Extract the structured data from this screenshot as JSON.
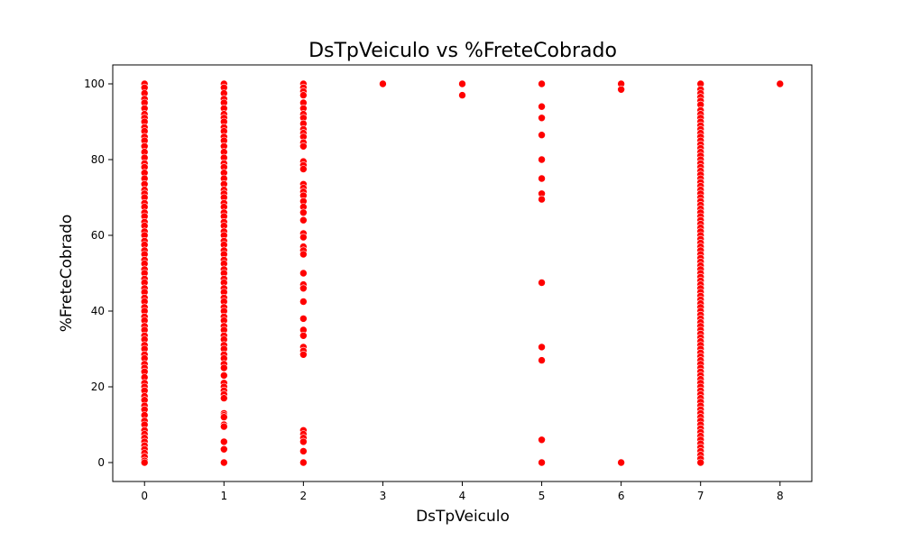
{
  "chart_data": {
    "type": "scatter",
    "title": "DsTpVeiculo vs %FreteCobrado",
    "xlabel": "DsTpVeiculo",
    "ylabel": "%FreteCobrado",
    "xlim": [
      -0.4,
      8.4
    ],
    "ylim": [
      -5,
      105
    ],
    "xticks": [
      0,
      1,
      2,
      3,
      4,
      5,
      6,
      7,
      8
    ],
    "yticks": [
      0,
      20,
      40,
      60,
      80,
      100
    ],
    "grid": false,
    "marker_color": "#ff0000",
    "series": [
      {
        "points": [
          [
            0,
            100
          ],
          [
            0,
            99
          ],
          [
            0,
            97.5
          ],
          [
            0,
            96
          ],
          [
            0,
            95
          ],
          [
            0,
            93.5
          ],
          [
            0,
            92
          ],
          [
            0,
            91
          ],
          [
            0,
            90
          ],
          [
            0,
            88.5
          ],
          [
            0,
            87.5
          ],
          [
            0,
            86
          ],
          [
            0,
            85
          ],
          [
            0,
            83.5
          ],
          [
            0,
            82
          ],
          [
            0,
            80.5
          ],
          [
            0,
            79
          ],
          [
            0,
            78
          ],
          [
            0,
            76.5
          ],
          [
            0,
            75
          ],
          [
            0,
            73.5
          ],
          [
            0,
            72
          ],
          [
            0,
            71
          ],
          [
            0,
            70
          ],
          [
            0,
            68.5
          ],
          [
            0,
            67.5
          ],
          [
            0,
            66
          ],
          [
            0,
            65
          ],
          [
            0,
            63.5
          ],
          [
            0,
            62.5
          ],
          [
            0,
            61
          ],
          [
            0,
            60
          ],
          [
            0,
            58.5
          ],
          [
            0,
            57.5
          ],
          [
            0,
            56
          ],
          [
            0,
            55
          ],
          [
            0,
            53.5
          ],
          [
            0,
            52.5
          ],
          [
            0,
            51
          ],
          [
            0,
            50
          ],
          [
            0,
            48.5
          ],
          [
            0,
            47.5
          ],
          [
            0,
            46
          ],
          [
            0,
            45
          ],
          [
            0,
            43.5
          ],
          [
            0,
            42.5
          ],
          [
            0,
            41
          ],
          [
            0,
            40
          ],
          [
            0,
            38.5
          ],
          [
            0,
            37.5
          ],
          [
            0,
            36
          ],
          [
            0,
            35
          ],
          [
            0,
            33.5
          ],
          [
            0,
            32.5
          ],
          [
            0,
            31
          ],
          [
            0,
            30
          ],
          [
            0,
            28.5
          ],
          [
            0,
            27.5
          ],
          [
            0,
            26
          ],
          [
            0,
            25
          ],
          [
            0,
            24
          ],
          [
            0,
            22.5
          ],
          [
            0,
            21
          ],
          [
            0,
            20
          ],
          [
            0,
            19
          ],
          [
            0,
            17.5
          ],
          [
            0,
            16.5
          ],
          [
            0,
            15
          ],
          [
            0,
            14
          ],
          [
            0,
            12.5
          ],
          [
            0,
            11
          ],
          [
            0,
            10
          ],
          [
            0,
            8.5
          ],
          [
            0,
            7.5
          ],
          [
            0,
            6.5
          ],
          [
            0,
            5.5
          ],
          [
            0,
            4.5
          ],
          [
            0,
            3.5
          ],
          [
            0,
            2.5
          ],
          [
            0,
            1.5
          ],
          [
            0,
            0.5
          ],
          [
            0,
            0
          ],
          [
            1,
            100
          ],
          [
            1,
            99
          ],
          [
            1,
            97.5
          ],
          [
            1,
            96
          ],
          [
            1,
            95
          ],
          [
            1,
            93.5
          ],
          [
            1,
            92
          ],
          [
            1,
            91
          ],
          [
            1,
            90
          ],
          [
            1,
            88.5
          ],
          [
            1,
            87.5
          ],
          [
            1,
            86
          ],
          [
            1,
            85
          ],
          [
            1,
            83.5
          ],
          [
            1,
            82
          ],
          [
            1,
            80.5
          ],
          [
            1,
            79
          ],
          [
            1,
            78
          ],
          [
            1,
            76.5
          ],
          [
            1,
            75
          ],
          [
            1,
            73.5
          ],
          [
            1,
            72
          ],
          [
            1,
            71
          ],
          [
            1,
            70
          ],
          [
            1,
            68.5
          ],
          [
            1,
            67.5
          ],
          [
            1,
            66
          ],
          [
            1,
            65
          ],
          [
            1,
            63.5
          ],
          [
            1,
            62.5
          ],
          [
            1,
            61
          ],
          [
            1,
            60
          ],
          [
            1,
            58.5
          ],
          [
            1,
            57.5
          ],
          [
            1,
            56
          ],
          [
            1,
            55
          ],
          [
            1,
            53.5
          ],
          [
            1,
            52.5
          ],
          [
            1,
            51
          ],
          [
            1,
            50
          ],
          [
            1,
            48.5
          ],
          [
            1,
            47.5
          ],
          [
            1,
            46
          ],
          [
            1,
            45
          ],
          [
            1,
            43.5
          ],
          [
            1,
            42.5
          ],
          [
            1,
            41
          ],
          [
            1,
            40
          ],
          [
            1,
            38.5
          ],
          [
            1,
            37.5
          ],
          [
            1,
            36
          ],
          [
            1,
            35
          ],
          [
            1,
            33.5
          ],
          [
            1,
            32.5
          ],
          [
            1,
            31
          ],
          [
            1,
            30
          ],
          [
            1,
            28.5
          ],
          [
            1,
            27.5
          ],
          [
            1,
            26
          ],
          [
            1,
            25
          ],
          [
            1,
            23
          ],
          [
            1,
            21
          ],
          [
            1,
            20
          ],
          [
            1,
            19
          ],
          [
            1,
            18
          ],
          [
            1,
            17
          ],
          [
            1,
            13
          ],
          [
            1,
            12.5
          ],
          [
            1,
            12
          ],
          [
            1,
            10
          ],
          [
            1,
            9.5
          ],
          [
            1,
            5.5
          ],
          [
            1,
            3.5
          ],
          [
            1,
            0
          ],
          [
            2,
            100
          ],
          [
            2,
            99
          ],
          [
            2,
            98
          ],
          [
            2,
            97
          ],
          [
            2,
            95
          ],
          [
            2,
            93.5
          ],
          [
            2,
            92
          ],
          [
            2,
            91
          ],
          [
            2,
            89.5
          ],
          [
            2,
            88
          ],
          [
            2,
            87
          ],
          [
            2,
            86
          ],
          [
            2,
            84.5
          ],
          [
            2,
            83.5
          ],
          [
            2,
            79.5
          ],
          [
            2,
            78.5
          ],
          [
            2,
            77.5
          ],
          [
            2,
            73.5
          ],
          [
            2,
            72.5
          ],
          [
            2,
            71.5
          ],
          [
            2,
            70.5
          ],
          [
            2,
            69
          ],
          [
            2,
            67.5
          ],
          [
            2,
            66
          ],
          [
            2,
            64
          ],
          [
            2,
            60.5
          ],
          [
            2,
            59.5
          ],
          [
            2,
            57
          ],
          [
            2,
            56
          ],
          [
            2,
            55
          ],
          [
            2,
            50
          ],
          [
            2,
            47
          ],
          [
            2,
            46
          ],
          [
            2,
            42.5
          ],
          [
            2,
            38
          ],
          [
            2,
            35
          ],
          [
            2,
            33.5
          ],
          [
            2,
            30.5
          ],
          [
            2,
            29.5
          ],
          [
            2,
            28.5
          ],
          [
            2,
            8.5
          ],
          [
            2,
            7.5
          ],
          [
            2,
            6.5
          ],
          [
            2,
            5.5
          ],
          [
            2,
            3
          ],
          [
            2,
            0
          ],
          [
            3,
            100
          ],
          [
            4,
            100
          ],
          [
            4,
            97
          ],
          [
            5,
            100
          ],
          [
            5,
            94
          ],
          [
            5,
            91
          ],
          [
            5,
            86.5
          ],
          [
            5,
            80
          ],
          [
            5,
            75
          ],
          [
            5,
            71
          ],
          [
            5,
            69.5
          ],
          [
            5,
            47.5
          ],
          [
            5,
            30.5
          ],
          [
            5,
            27
          ],
          [
            5,
            6
          ],
          [
            5,
            0
          ],
          [
            6,
            100
          ],
          [
            6,
            98.5
          ],
          [
            6,
            0
          ],
          [
            7,
            100
          ],
          [
            7,
            98.5
          ],
          [
            7,
            97.5
          ],
          [
            7,
            96.5
          ],
          [
            7,
            95.5
          ],
          [
            7,
            94.5
          ],
          [
            7,
            93
          ],
          [
            7,
            92
          ],
          [
            7,
            91
          ],
          [
            7,
            90
          ],
          [
            7,
            89
          ],
          [
            7,
            88
          ],
          [
            7,
            87
          ],
          [
            7,
            86
          ],
          [
            7,
            85
          ],
          [
            7,
            84
          ],
          [
            7,
            83
          ],
          [
            7,
            82
          ],
          [
            7,
            81
          ],
          [
            7,
            80
          ],
          [
            7,
            79
          ],
          [
            7,
            78
          ],
          [
            7,
            77
          ],
          [
            7,
            76
          ],
          [
            7,
            75
          ],
          [
            7,
            74
          ],
          [
            7,
            73
          ],
          [
            7,
            72
          ],
          [
            7,
            71
          ],
          [
            7,
            70
          ],
          [
            7,
            69
          ],
          [
            7,
            68
          ],
          [
            7,
            67
          ],
          [
            7,
            66
          ],
          [
            7,
            65
          ],
          [
            7,
            64
          ],
          [
            7,
            63
          ],
          [
            7,
            62
          ],
          [
            7,
            61
          ],
          [
            7,
            60
          ],
          [
            7,
            59
          ],
          [
            7,
            58
          ],
          [
            7,
            57
          ],
          [
            7,
            56
          ],
          [
            7,
            55
          ],
          [
            7,
            54
          ],
          [
            7,
            53
          ],
          [
            7,
            52
          ],
          [
            7,
            51
          ],
          [
            7,
            50
          ],
          [
            7,
            49
          ],
          [
            7,
            48
          ],
          [
            7,
            47
          ],
          [
            7,
            46
          ],
          [
            7,
            45
          ],
          [
            7,
            44
          ],
          [
            7,
            43
          ],
          [
            7,
            42
          ],
          [
            7,
            41
          ],
          [
            7,
            40
          ],
          [
            7,
            39
          ],
          [
            7,
            38
          ],
          [
            7,
            37
          ],
          [
            7,
            36
          ],
          [
            7,
            35
          ],
          [
            7,
            34
          ],
          [
            7,
            33
          ],
          [
            7,
            32
          ],
          [
            7,
            31
          ],
          [
            7,
            30
          ],
          [
            7,
            29
          ],
          [
            7,
            28
          ],
          [
            7,
            27
          ],
          [
            7,
            26
          ],
          [
            7,
            25
          ],
          [
            7,
            24
          ],
          [
            7,
            23
          ],
          [
            7,
            22
          ],
          [
            7,
            21
          ],
          [
            7,
            20
          ],
          [
            7,
            19
          ],
          [
            7,
            18
          ],
          [
            7,
            17
          ],
          [
            7,
            16
          ],
          [
            7,
            15
          ],
          [
            7,
            14
          ],
          [
            7,
            13
          ],
          [
            7,
            12
          ],
          [
            7,
            11
          ],
          [
            7,
            10
          ],
          [
            7,
            9
          ],
          [
            7,
            8
          ],
          [
            7,
            7
          ],
          [
            7,
            6
          ],
          [
            7,
            5
          ],
          [
            7,
            4
          ],
          [
            7,
            3
          ],
          [
            7,
            2
          ],
          [
            7,
            1
          ],
          [
            7,
            0
          ],
          [
            8,
            100
          ]
        ]
      }
    ]
  }
}
